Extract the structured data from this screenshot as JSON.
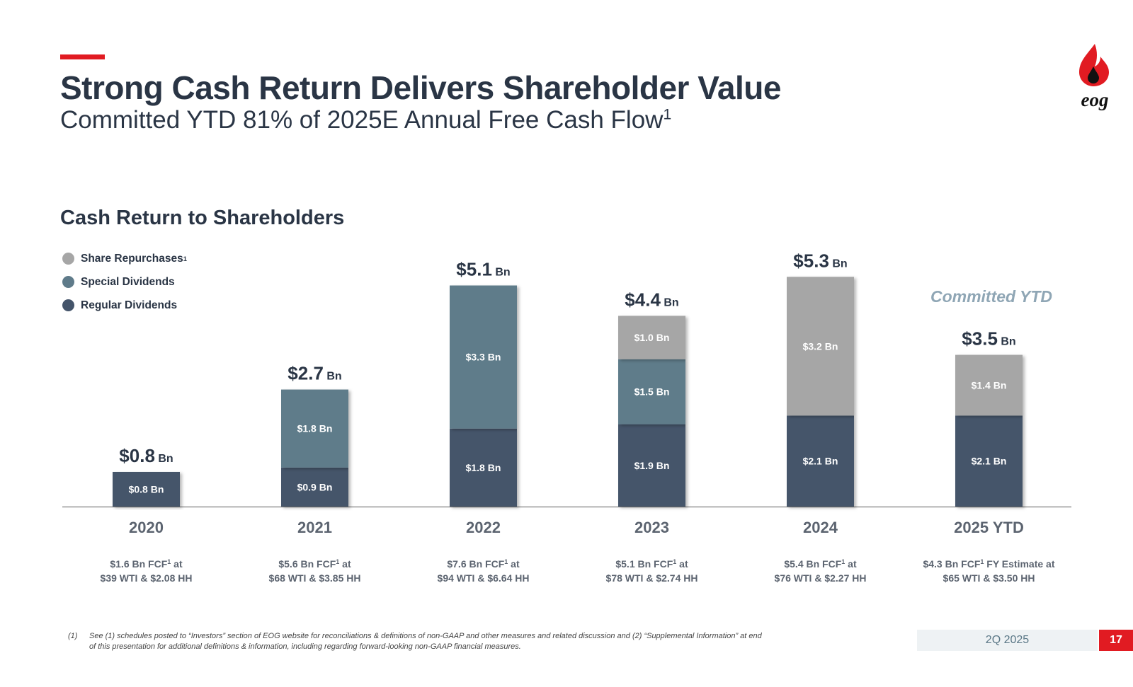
{
  "header": {
    "title": "Strong Cash Return Delivers Shareholder Value",
    "subtitle": "Committed YTD 81% of 2025E Annual Free Cash Flow",
    "subtitle_sup": "1",
    "logo_text": "eog"
  },
  "section": {
    "title": "Cash Return to Shareholders"
  },
  "legend": [
    {
      "label": "Share Repurchases",
      "sup": "1",
      "color": "#a6a6a6"
    },
    {
      "label": "Special Dividends",
      "sup": "",
      "color": "#5f7b8a"
    },
    {
      "label": "Regular Dividends",
      "sup": "",
      "color": "#44546a"
    }
  ],
  "annotation": "Committed YTD",
  "chart_data": {
    "type": "bar",
    "stacked": true,
    "title": "Cash Return to Shareholders",
    "unit": "Bn",
    "ylim": [
      0,
      5.5
    ],
    "categories": [
      "2020",
      "2021",
      "2022",
      "2023",
      "2024",
      "2025 YTD"
    ],
    "series": [
      {
        "name": "Regular Dividends",
        "color": "#44546a",
        "values": [
          0.8,
          0.9,
          1.8,
          1.9,
          2.1,
          2.1
        ],
        "labels": [
          "$0.8 Bn",
          "$0.9 Bn",
          "$1.8 Bn",
          "$1.9 Bn",
          "$2.1 Bn",
          "$2.1 Bn"
        ]
      },
      {
        "name": "Special Dividends",
        "color": "#5f7b8a",
        "values": [
          0,
          1.8,
          3.3,
          1.5,
          0,
          0
        ],
        "labels": [
          "",
          "$1.8 Bn",
          "$3.3 Bn",
          "$1.5 Bn",
          "",
          ""
        ]
      },
      {
        "name": "Share Repurchases",
        "color": "#a6a6a6",
        "values": [
          0,
          0,
          0,
          1.0,
          3.2,
          1.4
        ],
        "labels": [
          "",
          "",
          "",
          "$1.0 Bn",
          "$3.2 Bn",
          "$1.4 Bn"
        ]
      }
    ],
    "totals": [
      0.8,
      2.7,
      5.1,
      4.4,
      5.3,
      3.5
    ],
    "total_labels": [
      "$0.8",
      "$2.7",
      "$5.1",
      "$4.4",
      "$5.3",
      "$3.5"
    ],
    "total_unit": "Bn",
    "fcf_notes": [
      {
        "line1": "$1.6 Bn FCF",
        "line1_end": " at",
        "line2": "$39 WTI & $2.08 HH"
      },
      {
        "line1": "$5.6 Bn FCF",
        "line1_end": " at",
        "line2": "$68 WTI & $3.85 HH"
      },
      {
        "line1": "$7.6 Bn FCF",
        "line1_end": " at",
        "line2": "$94 WTI & $6.64 HH"
      },
      {
        "line1": "$5.1 Bn FCF",
        "line1_end": " at",
        "line2": "$78 WTI & $2.74 HH"
      },
      {
        "line1": "$5.4 Bn FCF",
        "line1_end": " at",
        "line2": "$76 WTI & $2.27 HH"
      },
      {
        "line1": "$4.3 Bn FCF",
        "line1_end": " FY Estimate at",
        "line2": "$65 WTI & $3.50 HH"
      }
    ],
    "note_sup": "1"
  },
  "footer": {
    "footnote_num": "(1)",
    "footnote_text": "See (1) schedules posted to “Investors” section of EOG website for reconciliations & definitions of non-GAAP and other measures and related discussion and (2) “Supplemental Information” at end of this presentation for additional definitions & information, including regarding forward-looking non-GAAP financial measures.",
    "quarter": "2Q 2025",
    "page_number": "17"
  },
  "colors": {
    "accent": "#e11b22",
    "text": "#2a3545",
    "axis_label": "#5c6470"
  }
}
